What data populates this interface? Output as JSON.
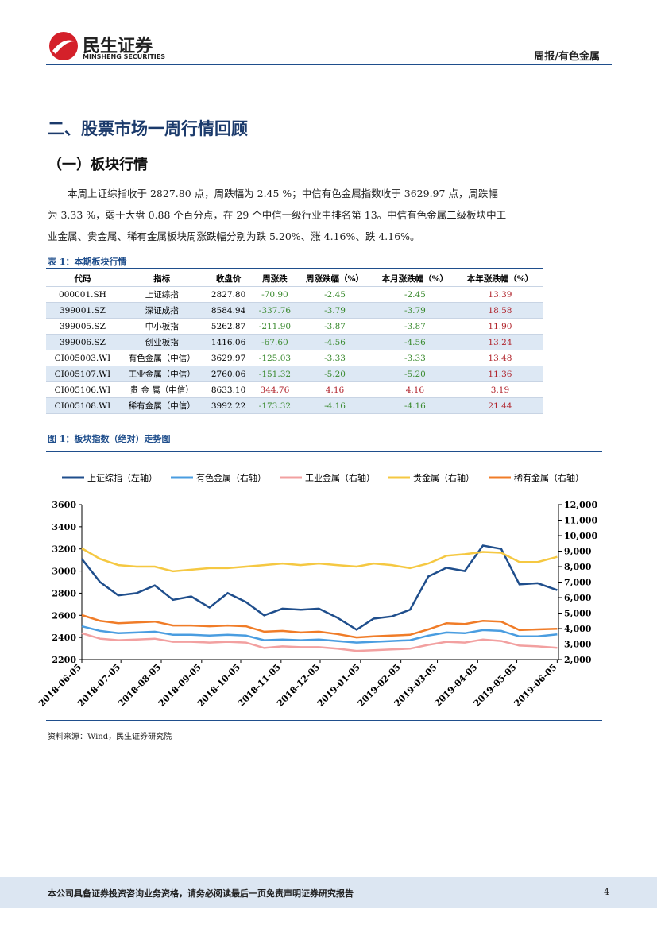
{
  "header": {
    "logo_cn": "民生证券",
    "logo_en": "MINSHENG SECURITIES",
    "report": "周报/有色金属"
  },
  "section_title": "二、股票市场一周行情回顾",
  "subsection_title": "（一）板块行情",
  "paragraph": "本周上证综指收于 2827.80 点，周跌幅为 2.45 %；中信有色金属指数收于 3629.97 点，周跌幅为 3.33 %，弱于大盘 0.88 个百分点，在 29 个中信一级行业中排名第 13。中信有色金属二级板块中工业金属、贵金属、稀有金属板块周涨跌幅分别为跌 5.20%、涨 4.16%、跌 4.16%。",
  "table": {
    "caption": "表 1：本期板块行情",
    "header": [
      "代码",
      "指标",
      "收盘价",
      "周涨跌",
      "周涨跌幅（%）",
      "本月涨跌幅（%）",
      "本年涨跌幅（%）"
    ],
    "rows": [
      [
        "000001.SH",
        "上证综指",
        "2827.80",
        "-70.90",
        "-2.45",
        "-2.45",
        "13.39"
      ],
      [
        "399001.SZ",
        "深证成指",
        "8584.94",
        "-337.76",
        "-3.79",
        "-3.79",
        "18.58"
      ],
      [
        "399005.SZ",
        "中小板指",
        "5262.87",
        "-211.90",
        "-3.87",
        "-3.87",
        "11.90"
      ],
      [
        "399006.SZ",
        "创业板指",
        "1416.06",
        "-67.60",
        "-4.56",
        "-4.56",
        "13.24"
      ],
      [
        "CI005003.WI",
        "有色金属（中信）",
        "3629.97",
        "-125.03",
        "-3.33",
        "-3.33",
        "13.48"
      ],
      [
        "CI005107.WI",
        "工业金属（中信）",
        "2760.06",
        "-151.32",
        "-5.20",
        "-5.20",
        "11.36"
      ],
      [
        "CI005106.WI",
        "贵 金 属（中信）",
        "8633.10",
        "344.76",
        "4.16",
        "4.16",
        "3.19"
      ],
      [
        "CI005108.WI",
        "稀有金属（中信）",
        "3992.22",
        "-173.32",
        "-4.16",
        "-4.16",
        "21.44"
      ]
    ]
  },
  "figure_caption": "图 1：板块指数（绝对）走势图",
  "source": "资料来源：Wind，民生证券研究院",
  "footer": {
    "disclaimer": "本公司具备证券投资咨询业务资格，请务必阅读最后一页免责声明证券研究报告",
    "page": "4"
  },
  "chart_data": {
    "type": "line",
    "x": [
      "2018-06-05",
      "2018-06-19",
      "2018-07-03",
      "2018-07-17",
      "2018-07-31",
      "2018-08-14",
      "2018-08-28",
      "2018-09-11",
      "2018-09-25",
      "2018-10-09",
      "2018-10-23",
      "2018-11-06",
      "2018-11-20",
      "2018-12-04",
      "2018-12-18",
      "2019-01-02",
      "2019-01-15",
      "2019-01-29",
      "2019-02-12",
      "2019-02-26",
      "2019-03-12",
      "2019-03-26",
      "2019-04-09",
      "2019-04-23",
      "2019-05-07",
      "2019-05-21",
      "2019-06-05"
    ],
    "xlim": [
      "2018-06-05",
      "2019-06-06"
    ],
    "xticks": [
      "2018-06-05",
      "2018-07-05",
      "2018-08-05",
      "2018-09-05",
      "2018-10-05",
      "2018-11-05",
      "2018-12-05",
      "2019-01-05",
      "2019-02-05",
      "2019-03-05",
      "2019-04-05",
      "2019-05-05",
      "2019-06-05"
    ],
    "ylim": [
      2200,
      3600
    ],
    "yticks": [
      2200,
      2400,
      2600,
      2800,
      3000,
      3200,
      3400,
      3600
    ],
    "y2lim": [
      2000,
      12000
    ],
    "y2ticks": [
      {
        "value": 2000,
        "label": "2,000"
      },
      {
        "value": 3000,
        "label": "3,000"
      },
      {
        "value": 4000,
        "label": "4,000"
      },
      {
        "value": 5000,
        "label": "5,000"
      },
      {
        "value": 6000,
        "label": "6,000"
      },
      {
        "value": 7000,
        "label": "7,000"
      },
      {
        "value": 8000,
        "label": "8,000"
      },
      {
        "value": 9000,
        "label": "9,000"
      },
      {
        "value": 10000,
        "label": "10,000"
      },
      {
        "value": 11000,
        "label": "11,000"
      },
      {
        "value": 12000,
        "label": "12,000"
      }
    ],
    "series": [
      {
        "name": "上证综指（左轴）",
        "color": "#1f4e8c",
        "axis": "y",
        "values": [
          3110,
          2900,
          2780,
          2800,
          2870,
          2740,
          2770,
          2670,
          2800,
          2720,
          2600,
          2660,
          2650,
          2660,
          2580,
          2470,
          2570,
          2590,
          2650,
          2950,
          3030,
          3000,
          3230,
          3200,
          2880,
          2890,
          2827.8
        ]
      },
      {
        "name": "有色金属（右轴）",
        "color": "#4a9de0",
        "axis": "y2",
        "values": [
          4150,
          3850,
          3700,
          3750,
          3800,
          3600,
          3600,
          3550,
          3600,
          3550,
          3250,
          3300,
          3250,
          3300,
          3200,
          3100,
          3150,
          3200,
          3250,
          3550,
          3750,
          3700,
          3900,
          3850,
          3500,
          3500,
          3629.97
        ]
      },
      {
        "name": "工业金属（右轴）",
        "color": "#f2a0a0",
        "axis": "y2",
        "values": [
          3700,
          3350,
          3250,
          3300,
          3350,
          3150,
          3150,
          3100,
          3150,
          3100,
          2750,
          2850,
          2800,
          2800,
          2700,
          2560,
          2600,
          2650,
          2700,
          2950,
          3150,
          3100,
          3300,
          3200,
          2900,
          2850,
          2760.06
        ]
      },
      {
        "name": "贵金属（右轴）",
        "color": "#f5c842",
        "axis": "y2",
        "values": [
          9180,
          8500,
          8100,
          8000,
          8000,
          7700,
          7800,
          7900,
          7900,
          8000,
          8100,
          8200,
          8100,
          8200,
          8100,
          8000,
          8200,
          8100,
          7900,
          8200,
          8700,
          8800,
          8950,
          8900,
          8300,
          8300,
          8633.1
        ]
      },
      {
        "name": "稀有金属（右轴）",
        "color": "#f07c28",
        "axis": "y2",
        "values": [
          4870,
          4500,
          4350,
          4400,
          4450,
          4200,
          4200,
          4150,
          4200,
          4150,
          3800,
          3850,
          3750,
          3800,
          3650,
          3430,
          3500,
          3550,
          3600,
          3950,
          4350,
          4300,
          4500,
          4450,
          3900,
          3950,
          3992.22
        ]
      }
    ]
  }
}
